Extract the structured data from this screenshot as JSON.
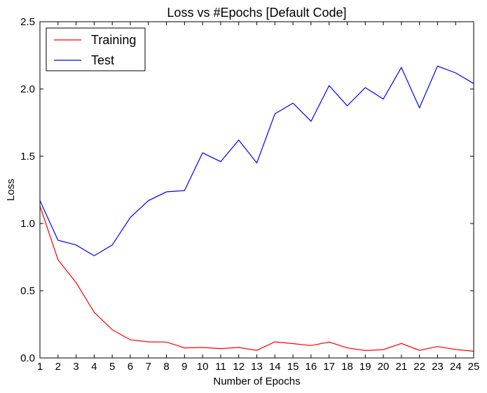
{
  "chart_data": {
    "type": "line",
    "title": "Loss vs #Epochs [Default Code]",
    "xlabel": "Number of Epochs",
    "ylabel": "Loss",
    "xlim": [
      1,
      25
    ],
    "ylim": [
      0,
      2.5
    ],
    "x": [
      1,
      2,
      3,
      4,
      5,
      6,
      7,
      8,
      9,
      10,
      11,
      12,
      13,
      14,
      15,
      16,
      17,
      18,
      19,
      20,
      21,
      22,
      23,
      24,
      25
    ],
    "x_ticks": [
      "1",
      "2",
      "3",
      "4",
      "5",
      "6",
      "7",
      "8",
      "9",
      "10",
      "11",
      "12",
      "13",
      "14",
      "15",
      "16",
      "17",
      "18",
      "19",
      "20",
      "21",
      "22",
      "23",
      "24",
      "25"
    ],
    "y_ticks": [
      "0.0",
      "0.5",
      "1.0",
      "1.5",
      "2.0",
      "2.5"
    ],
    "y_tick_values": [
      0,
      0.5,
      1.0,
      1.5,
      2.0,
      2.5
    ],
    "grid": false,
    "legend_position": "top-left",
    "series": [
      {
        "name": "Training",
        "color": "#ff0000",
        "values": [
          1.13,
          0.73,
          0.56,
          0.34,
          0.21,
          0.135,
          0.12,
          0.118,
          0.075,
          0.078,
          0.07,
          0.078,
          0.057,
          0.12,
          0.107,
          0.092,
          0.118,
          0.075,
          0.055,
          0.062,
          0.108,
          0.057,
          0.085,
          0.063,
          0.05
        ]
      },
      {
        "name": "Test",
        "color": "#0000ff",
        "values": [
          1.17,
          0.875,
          0.84,
          0.76,
          0.84,
          1.045,
          1.17,
          1.235,
          1.245,
          1.525,
          1.46,
          1.62,
          1.45,
          1.815,
          1.895,
          1.76,
          2.025,
          1.875,
          2.01,
          1.925,
          2.16,
          1.86,
          2.17,
          2.12,
          2.04
        ]
      }
    ]
  }
}
